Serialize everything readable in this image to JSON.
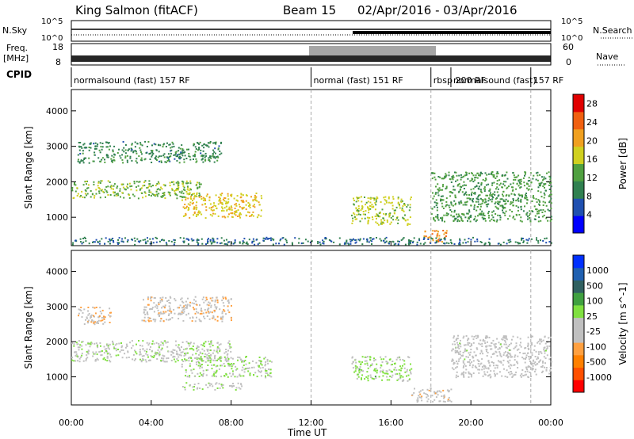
{
  "header": {
    "title": "King Salmon (fitACF)",
    "beam": "Beam 15",
    "dates": "02/Apr/2016 - 03/Apr/2016"
  },
  "summary": {
    "nsky_label": "N.Sky",
    "nsearch_label": "N.Search",
    "freq_label_1": "Freq.",
    "freq_label_2": "[MHz]",
    "nave_label": "Nave",
    "cpid_label": "CPID",
    "left_ticks_top": [
      "10^5",
      "10^0"
    ],
    "right_ticks_top": [
      "10^5",
      "10^0"
    ],
    "freq_ticks": [
      "18",
      "8"
    ],
    "nave_ticks": [
      "60",
      "0"
    ],
    "cpid_segments": [
      {
        "label": "normalsound (fast) 157 RF",
        "start_h": 0.0,
        "end_h": 12.0
      },
      {
        "label": "normal (fast) 151 RF",
        "start_h": 12.0,
        "end_h": 18.0
      },
      {
        "label": "rbsp 200 RF",
        "start_h": 18.0,
        "end_h": 19.0
      },
      {
        "label": "normalsound (fast)",
        "start_h": 19.0,
        "end_h": 23.0
      },
      {
        "label": "157 RF",
        "start_h": 23.0,
        "end_h": 24.0
      }
    ]
  },
  "colors": {
    "power_scale": [
      "#0000ff",
      "#2050b0",
      "#308050",
      "#50a040",
      "#d0d020",
      "#f0a020",
      "#f06010",
      "#e00000"
    ],
    "velocity_scale": [
      "#ff0000",
      "#ff5000",
      "#ff8000",
      "#ffa040",
      "#c0c0c0",
      "#c0c0c0",
      "#80e040",
      "#40a040",
      "#306060",
      "#2060b0",
      "#0030ff"
    ]
  },
  "chart_data": [
    {
      "type": "heatmap",
      "title": "Power",
      "ylabel": "Slant Range [km]",
      "xlabel": "Time UT",
      "x_ticks": [
        "00:00",
        "04:00",
        "08:00",
        "12:00",
        "16:00",
        "20:00",
        "00:00"
      ],
      "x_range_h": [
        0,
        24
      ],
      "y_ticks": [
        1000,
        2000,
        3000,
        4000
      ],
      "ylim": [
        200,
        4600
      ],
      "colorbar_label": "Power [dB]",
      "colorbar_ticks": [
        4,
        8,
        12,
        16,
        20,
        24,
        28
      ],
      "colorbar_range": [
        0,
        30
      ],
      "regions": [
        {
          "t0": 0.3,
          "t1": 7.5,
          "r0": 2550,
          "r1": 3150,
          "value": 10
        },
        {
          "t0": 0.0,
          "t1": 6.5,
          "r0": 1550,
          "r1": 2050,
          "value": 14
        },
        {
          "t0": 5.5,
          "t1": 9.5,
          "r0": 1000,
          "r1": 1700,
          "value": 18
        },
        {
          "t0": 14.0,
          "t1": 17.0,
          "r0": 800,
          "r1": 1600,
          "value": 16
        },
        {
          "t0": 17.6,
          "t1": 18.8,
          "r0": 300,
          "r1": 650,
          "value": 22
        },
        {
          "t0": 18.0,
          "t1": 24.0,
          "r0": 900,
          "r1": 2300,
          "value": 12
        },
        {
          "t0": 0.0,
          "t1": 24.0,
          "r0": 250,
          "r1": 450,
          "value": 8
        }
      ]
    },
    {
      "type": "heatmap",
      "title": "Velocity",
      "ylabel": "Slant Range [km]",
      "xlabel": "Time UT",
      "x_ticks": [
        "00:00",
        "04:00",
        "08:00",
        "12:00",
        "16:00",
        "20:00",
        "00:00"
      ],
      "x_range_h": [
        0,
        24
      ],
      "y_ticks": [
        1000,
        2000,
        3000,
        4000
      ],
      "ylim": [
        200,
        4600
      ],
      "colorbar_label": "Velocity [m s^-1]",
      "colorbar_ticks": [
        1000,
        500,
        100,
        25,
        -25,
        -100,
        -500,
        -1000
      ],
      "colorbar_range": [
        -1200,
        1200
      ],
      "regions": [
        {
          "t0": 0.3,
          "t1": 2.0,
          "r0": 2500,
          "r1": 3000,
          "value": -300
        },
        {
          "t0": 3.5,
          "t1": 8.0,
          "r0": 2600,
          "r1": 3300,
          "value": -200
        },
        {
          "t0": 0.0,
          "t1": 8.0,
          "r0": 1450,
          "r1": 2050,
          "value": 0
        },
        {
          "t0": 5.5,
          "t1": 10.0,
          "r0": 1000,
          "r1": 1600,
          "value": 80
        },
        {
          "t0": 5.5,
          "t1": 8.5,
          "r0": 650,
          "r1": 850,
          "value": 0
        },
        {
          "t0": 14.0,
          "t1": 17.0,
          "r0": 900,
          "r1": 1600,
          "value": 120
        },
        {
          "t0": 17.0,
          "t1": 19.0,
          "r0": 300,
          "r1": 700,
          "value": -150
        },
        {
          "t0": 19.0,
          "t1": 24.0,
          "r0": 1000,
          "r1": 2200,
          "value": -100
        }
      ]
    }
  ]
}
